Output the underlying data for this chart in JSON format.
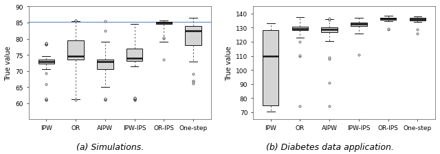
{
  "categories": [
    "IPW",
    "OR",
    "AIPW",
    "IPW-IPS",
    "OR-IPS",
    "One-step"
  ],
  "subplot_a": {
    "title": "(a) Simulations.",
    "ylabel": "True value",
    "hline": 85.3,
    "hline_color": "#7799cc",
    "ylim": [
      55,
      90
    ],
    "yticks": [
      60,
      65,
      70,
      75,
      80,
      85,
      90
    ],
    "boxes": [
      {
        "q1": 72.3,
        "median": 73.0,
        "q3": 73.6,
        "whislo": 70.5,
        "whishi": 74.5,
        "fliers": [
          69.2,
          65.8,
          61.0,
          61.1,
          61.2,
          61.3,
          61.4,
          78.1,
          78.2,
          78.3,
          78.4,
          78.5,
          78.6,
          78.7
        ]
      },
      {
        "q1": 73.5,
        "median": 74.5,
        "q3": 79.5,
        "whislo": 61.2,
        "whishi": 85.4,
        "fliers": [
          61.0,
          85.6,
          85.7
        ]
      },
      {
        "q1": 70.5,
        "median": 73.0,
        "q3": 73.5,
        "whislo": 65.0,
        "whishi": 79.0,
        "fliers": [
          61.0,
          61.2,
          61.3,
          61.4,
          82.5,
          85.5
        ]
      },
      {
        "q1": 73.2,
        "median": 74.0,
        "q3": 77.0,
        "whislo": 71.5,
        "whishi": 84.5,
        "fliers": [
          61.0,
          61.1,
          61.2,
          61.3,
          61.4,
          61.5,
          61.6,
          61.7
        ]
      },
      {
        "q1": 84.5,
        "median": 85.0,
        "q3": 85.3,
        "whislo": 79.0,
        "whishi": 85.7,
        "fliers": [
          73.5,
          80.2,
          80.3
        ]
      },
      {
        "q1": 78.0,
        "median": 82.5,
        "q3": 84.0,
        "whislo": 73.0,
        "whishi": 86.5,
        "fliers": [
          69.0,
          67.0,
          66.5,
          66.0
        ]
      }
    ]
  },
  "subplot_b": {
    "title": "(b) Diabetes data application.",
    "ylabel": "True value",
    "ylim": [
      65,
      145
    ],
    "yticks": [
      70,
      80,
      90,
      100,
      110,
      120,
      130,
      140
    ],
    "boxes": [
      {
        "q1": 75.0,
        "median": 110.0,
        "q3": 128.0,
        "whislo": 70.5,
        "whishi": 133.0,
        "fliers": []
      },
      {
        "q1": 128.0,
        "median": 129.0,
        "q3": 130.5,
        "whislo": 123.0,
        "whishi": 137.5,
        "fliers": [
          74.5,
          110.0,
          110.5,
          120.0
        ]
      },
      {
        "q1": 127.0,
        "median": 128.5,
        "q3": 130.0,
        "whislo": 120.5,
        "whishi": 136.0,
        "fliers": [
          74.5,
          91.0,
          108.0,
          109.0,
          135.5,
          136.5
        ]
      },
      {
        "q1": 131.0,
        "median": 132.5,
        "q3": 133.5,
        "whislo": 126.0,
        "whishi": 137.0,
        "fliers": [
          111.0
        ]
      },
      {
        "q1": 135.5,
        "median": 136.5,
        "q3": 137.2,
        "whislo": 134.5,
        "whishi": 138.5,
        "fliers": [
          128.5,
          129.0
        ]
      },
      {
        "q1": 135.0,
        "median": 136.0,
        "q3": 137.0,
        "whislo": 134.0,
        "whishi": 138.0,
        "fliers": [
          126.0,
          128.5
        ]
      }
    ]
  },
  "box_facecolor": "#d4d4d4",
  "box_edgecolor": "#111111",
  "median_color": "#111111",
  "whisker_color": "#444444",
  "flier_facecolor": "white",
  "flier_edgecolor": "#333333",
  "plot_bg": "white",
  "fig_bg": "white",
  "caption_fontsize": 9,
  "label_fontsize": 7,
  "tick_fontsize": 6.5
}
